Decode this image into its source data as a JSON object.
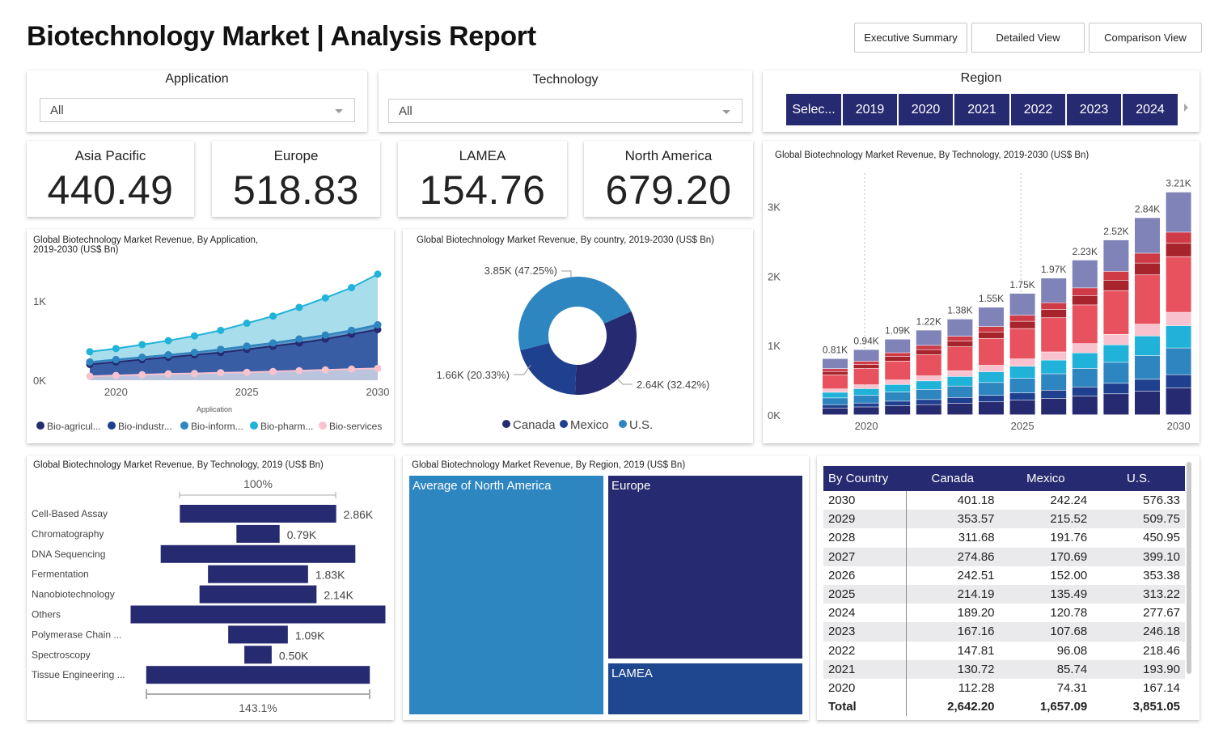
{
  "header": {
    "title": "Biotechnology Market | Analysis Report",
    "nav": [
      "Executive Summary",
      "Detailed View",
      "Comparison View"
    ]
  },
  "slicers": {
    "application": {
      "label": "Application",
      "value": "All"
    },
    "technology": {
      "label": "Technology",
      "value": "All"
    },
    "region": {
      "label": "Region",
      "options": [
        "Selec...",
        "2019",
        "2020",
        "2021",
        "2022",
        "2023",
        "2024"
      ]
    }
  },
  "kpis": [
    {
      "label": "Asia Pacific",
      "value": "440.49"
    },
    {
      "label": "Europe",
      "value": "518.83"
    },
    {
      "label": "LAMEA",
      "value": "154.76"
    },
    {
      "label": "North America",
      "value": "679.20"
    }
  ],
  "colors": {
    "navy": "#262a70",
    "navy2": "#1f3f8f",
    "blue": "#2e86c1",
    "cyan": "#20b2d9",
    "pink": "#f8c3cf",
    "red": "#e8525e",
    "darkred": "#a8242c",
    "purple": "#8083b8"
  },
  "chart_data": [
    {
      "id": "application_area",
      "type": "area",
      "title": "Global Biotechnology Market Revenue, By Application, 2019-2030 (US$ Bn)",
      "title_line1": "Global Biotechnology Market Revenue, By Application,",
      "title_line2": "2019-2030 (US$ Bn)",
      "xlabel": "Application",
      "x": [
        2019,
        2020,
        2021,
        2022,
        2023,
        2024,
        2025,
        2026,
        2027,
        2028,
        2029,
        2030
      ],
      "x_ticks": [
        "2020",
        "2025",
        "2030"
      ],
      "y_ticks": [
        "0K",
        "1K"
      ],
      "ylim": [
        0,
        1400
      ],
      "series": [
        {
          "name": "Bio-agricul...",
          "color": "#262a70",
          "values": [
            200,
            230,
            260,
            290,
            320,
            350,
            390,
            430,
            470,
            520,
            580,
            640
          ]
        },
        {
          "name": "Bio-industr...",
          "color": "#1f3f8f",
          "values": [
            230,
            260,
            290,
            320,
            350,
            390,
            430,
            470,
            520,
            570,
            630,
            700
          ]
        },
        {
          "name": "Bio-inform...",
          "color": "#2e86c1",
          "values": [
            230,
            260,
            290,
            320,
            350,
            390,
            430,
            470,
            520,
            570,
            630,
            700
          ]
        },
        {
          "name": "Bio-pharm...",
          "color": "#20b2d9",
          "values": [
            360,
            400,
            450,
            500,
            560,
            630,
            720,
            810,
            920,
            1040,
            1170,
            1340
          ]
        },
        {
          "name": "Bio-services",
          "color": "#f8c3cf",
          "values": [
            50,
            60,
            70,
            80,
            85,
            95,
            100,
            110,
            120,
            130,
            140,
            150
          ]
        }
      ]
    },
    {
      "id": "country_donut",
      "type": "pie",
      "title": "Global Biotechnology Market Revenue, By country, 2019-2030 (US$ Bn)",
      "slices": [
        {
          "name": "U.S.",
          "value": 3851.05,
          "label": "3.85K (47.25%)",
          "color": "#2e86c1"
        },
        {
          "name": "Canada",
          "value": 2642.2,
          "label": "2.64K (32.42%)",
          "color": "#262a70"
        },
        {
          "name": "Mexico",
          "value": 1657.09,
          "label": "1.66K (20.33%)",
          "color": "#1f3f8f"
        }
      ],
      "legend": [
        "Canada",
        "Mexico",
        "U.S."
      ]
    },
    {
      "id": "technology_stacked",
      "type": "bar",
      "title": "Global Biotechnology Market Revenue, By Technology, 2019-2030 (US$ Bn)",
      "x": [
        2019,
        2020,
        2021,
        2022,
        2023,
        2024,
        2025,
        2026,
        2027,
        2028,
        2029,
        2030
      ],
      "x_ticks": [
        "2020",
        "2025",
        "2030"
      ],
      "y_ticks": [
        "0K",
        "1K",
        "2K",
        "3K"
      ],
      "ylim": [
        0,
        3300
      ],
      "totals": [
        810,
        940,
        1090,
        1220,
        1380,
        1550,
        1750,
        1970,
        2230,
        2520,
        2840,
        3210
      ],
      "total_labels": [
        "0.81K",
        "0.94K",
        "1.09K",
        "1.22K",
        "1.38K",
        "1.55K",
        "1.75K",
        "1.97K",
        "2.23K",
        "2.52K",
        "2.84K",
        "3.21K"
      ],
      "segment_shares": [
        0.12,
        0.06,
        0.12,
        0.1,
        0.06,
        0.25,
        0.06,
        0.05,
        0.18
      ],
      "segment_colors": [
        "#262a70",
        "#1f3f8f",
        "#2e86c1",
        "#20b2d9",
        "#f8c3cf",
        "#e8525e",
        "#a8242c",
        "#cf3a47",
        "#8083b8"
      ]
    },
    {
      "id": "technology_funnel",
      "type": "bar",
      "title": "Global Biotechnology Market Revenue, By Technology, 2019 (US$ Bn)",
      "categories": [
        "Cell-Based Assay",
        "Chromatography",
        "DNA Sequencing",
        "Fermentation",
        "Nanobiotechnology",
        "Others",
        "Polymerase Chain ...",
        "Spectroscopy",
        "Tissue Engineering ..."
      ],
      "values": [
        2.86,
        0.79,
        3.56,
        1.83,
        2.14,
        4.66,
        1.09,
        0.5,
        4.09
      ],
      "labels": [
        "2.86K",
        "0.79K",
        "",
        "1.83K",
        "2.14K",
        "",
        "1.09K",
        "0.50K",
        ""
      ],
      "top_pct": "100%",
      "bottom_pct": "143.1%"
    },
    {
      "id": "region_treemap",
      "type": "heatmap",
      "title": "Global Biotechnology Market Revenue, By Region, 2019 (US$ Bn)",
      "tiles": [
        {
          "name": "Average of North America",
          "value": 679.2
        },
        {
          "name": "Europe",
          "value": 518.83
        },
        {
          "name": "LAMEA",
          "value": 154.76
        }
      ]
    },
    {
      "id": "country_table",
      "type": "table",
      "columns": [
        "By Country",
        "Canada",
        "Mexico",
        "U.S."
      ],
      "rows": [
        [
          "2030",
          "401.18",
          "242.24",
          "576.33"
        ],
        [
          "2029",
          "353.57",
          "215.52",
          "509.75"
        ],
        [
          "2028",
          "311.68",
          "191.76",
          "450.95"
        ],
        [
          "2027",
          "274.86",
          "170.69",
          "399.10"
        ],
        [
          "2026",
          "242.51",
          "152.00",
          "353.38"
        ],
        [
          "2025",
          "214.19",
          "135.49",
          "313.22"
        ],
        [
          "2024",
          "189.20",
          "120.78",
          "277.67"
        ],
        [
          "2023",
          "167.16",
          "107.68",
          "246.18"
        ],
        [
          "2022",
          "147.81",
          "96.08",
          "218.46"
        ],
        [
          "2021",
          "130.72",
          "85.74",
          "193.90"
        ],
        [
          "2020",
          "112.28",
          "74.31",
          "167.14"
        ]
      ],
      "total": [
        "Total",
        "2,642.20",
        "1,657.09",
        "3,851.05"
      ]
    }
  ]
}
